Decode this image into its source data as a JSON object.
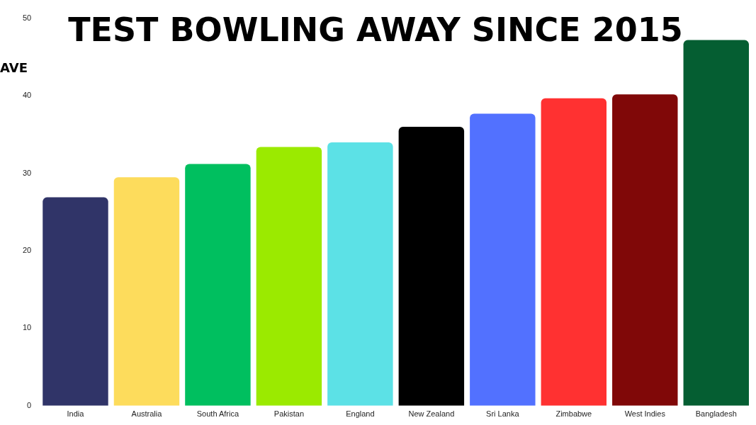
{
  "chart_data": {
    "type": "bar",
    "title": "TEST BOWLING AWAY SINCE 2015",
    "ylabel": "AVE",
    "categories": [
      "India",
      "Australia",
      "South Africa",
      "Pakistan",
      "England",
      "New Zealand",
      "Sri Lanka",
      "Zimbabwe",
      "West Indies",
      "Bangladesh"
    ],
    "values": [
      26.9,
      29.5,
      31.2,
      33.4,
      34.0,
      36.0,
      37.7,
      39.7,
      40.2,
      47.2
    ],
    "colors": [
      "#303468",
      "#fddc5c",
      "#00bf5f",
      "#9bea00",
      "#5ce1e6",
      "#000000",
      "#5271ff",
      "#ff3131",
      "#800808",
      "#055e32"
    ],
    "ylim": [
      0,
      50
    ],
    "yticks": [
      0,
      10,
      20,
      30,
      40,
      50
    ],
    "grid": false,
    "legend": false
  }
}
